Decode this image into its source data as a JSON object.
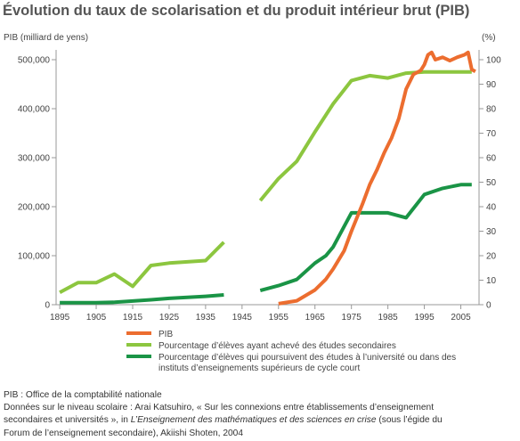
{
  "title": "Évolution du taux de scolarisation et du produit intérieur brut (PIB)",
  "chart_data": {
    "type": "line",
    "left_axis": {
      "label": "PIB (milliard de yens)",
      "ylim": [
        0,
        520000
      ],
      "ticks": [
        0,
        100000,
        200000,
        300000,
        400000,
        500000
      ],
      "tick_labels": [
        "0",
        "100,000",
        "200,000",
        "300,000",
        "400,000",
        "500,000"
      ]
    },
    "right_axis": {
      "label": "(%)",
      "ylim": [
        0,
        104
      ],
      "ticks": [
        0,
        10,
        20,
        30,
        40,
        50,
        60,
        70,
        80,
        90,
        100
      ],
      "tick_labels": [
        "0",
        "10",
        "20",
        "30",
        "40",
        "50",
        "60",
        "70",
        "80",
        "90",
        "100"
      ]
    },
    "x_axis": {
      "xlim": [
        1894,
        2010
      ],
      "ticks": [
        1895,
        1905,
        1915,
        1925,
        1935,
        1945,
        1955,
        1965,
        1975,
        1985,
        1995,
        2005
      ],
      "tick_labels": [
        "1895",
        "1905",
        "1915",
        "1925",
        "1935",
        "1945",
        "1955",
        "1965",
        "1975",
        "1985",
        "1995",
        "2005"
      ]
    },
    "grid": false,
    "legend_position": "bottom",
    "series": [
      {
        "name": "PIB",
        "axis": "left",
        "color": "#ec6d2f",
        "segments": [
          [
            [
              1955,
              2000
            ],
            [
              1960,
              8000
            ],
            [
              1965,
              30000
            ],
            [
              1968,
              52000
            ],
            [
              1970,
              73000
            ],
            [
              1973,
              110000
            ],
            [
              1975,
              150000
            ],
            [
              1978,
              205000
            ],
            [
              1980,
              245000
            ],
            [
              1982,
              275000
            ],
            [
              1984,
              310000
            ],
            [
              1986,
              340000
            ],
            [
              1988,
              380000
            ],
            [
              1990,
              440000
            ],
            [
              1992,
              470000
            ],
            [
              1994,
              478000
            ],
            [
              1995,
              490000
            ],
            [
              1996,
              510000
            ],
            [
              1997,
              515000
            ],
            [
              1998,
              500000
            ],
            [
              2000,
              505000
            ],
            [
              2002,
              498000
            ],
            [
              2004,
              505000
            ],
            [
              2006,
              510000
            ],
            [
              2007,
              515000
            ],
            [
              2008,
              480000
            ],
            [
              2009,
              476000
            ]
          ]
        ]
      },
      {
        "name": "Pourcentage d'élèves ayant achevé des études secondaires",
        "axis": "right",
        "color": "#8cc63f",
        "segments": [
          [
            [
              1895,
              5
            ],
            [
              1900,
              9
            ],
            [
              1905,
              9
            ],
            [
              1910,
              12.5
            ],
            [
              1915,
              7.5
            ],
            [
              1920,
              16
            ],
            [
              1925,
              17
            ],
            [
              1930,
              17.5
            ],
            [
              1935,
              18
            ],
            [
              1940,
              25.5
            ]
          ],
          [
            [
              1950,
              42.5
            ],
            [
              1955,
              51.5
            ],
            [
              1960,
              58.5
            ],
            [
              1965,
              70.5
            ],
            [
              1970,
              82
            ],
            [
              1975,
              91.5
            ],
            [
              1980,
              93.5
            ],
            [
              1985,
              92.5
            ],
            [
              1990,
              94.5
            ],
            [
              1995,
              95
            ],
            [
              2000,
              95
            ],
            [
              2008,
              95
            ]
          ]
        ]
      },
      {
        "name": "Pourcentage d'élèves qui poursuivent des études à l'université ou dans des instituts d'enseignements supérieurs de cycle court",
        "axis": "right",
        "color": "#1a9446",
        "segments": [
          [
            [
              1895,
              0.8
            ],
            [
              1900,
              0.8
            ],
            [
              1905,
              0.8
            ],
            [
              1910,
              1
            ],
            [
              1915,
              1.5
            ],
            [
              1920,
              2
            ],
            [
              1925,
              2.6
            ],
            [
              1930,
              3
            ],
            [
              1935,
              3.4
            ],
            [
              1940,
              4
            ]
          ],
          [
            [
              1950,
              5.8
            ],
            [
              1955,
              7.8
            ],
            [
              1960,
              10.3
            ],
            [
              1965,
              17
            ],
            [
              1968,
              20
            ],
            [
              1970,
              23.6
            ],
            [
              1975,
              37.5
            ],
            [
              1980,
              37.5
            ],
            [
              1985,
              37.5
            ],
            [
              1990,
              35.5
            ],
            [
              1995,
              45
            ],
            [
              2000,
              47.5
            ],
            [
              2005,
              49
            ],
            [
              2008,
              49
            ]
          ]
        ]
      }
    ]
  },
  "legend": {
    "pib": "PIB",
    "secondaire": "Pourcentage d’élèves ayant achevé des études secondaires",
    "superieur_line1": "Pourcentage d’élèves qui poursuivent des études à l’université ou dans des",
    "superieur_line2": "instituts d’enseignements supérieurs de cycle court"
  },
  "sources": {
    "line1": "PIB : Office de la comptabilité nationale",
    "line2": "Données sur le niveau scolaire : Arai Katsuhiro, « Sur les connexions entre établissements d’enseignement",
    "line3_a": "secondaires et universités », in ",
    "line3_b": "L’Enseignement des mathématiques et des sciences en crise",
    "line3_c": " (sous l’égide du",
    "line4": "Forum de l’enseignement secondaire), Akiishi Shoten, 2004"
  },
  "colors": {
    "axis": "#999999",
    "pib": "#ec6d2f",
    "secondaire": "#8cc63f",
    "superieur": "#1a9446"
  }
}
